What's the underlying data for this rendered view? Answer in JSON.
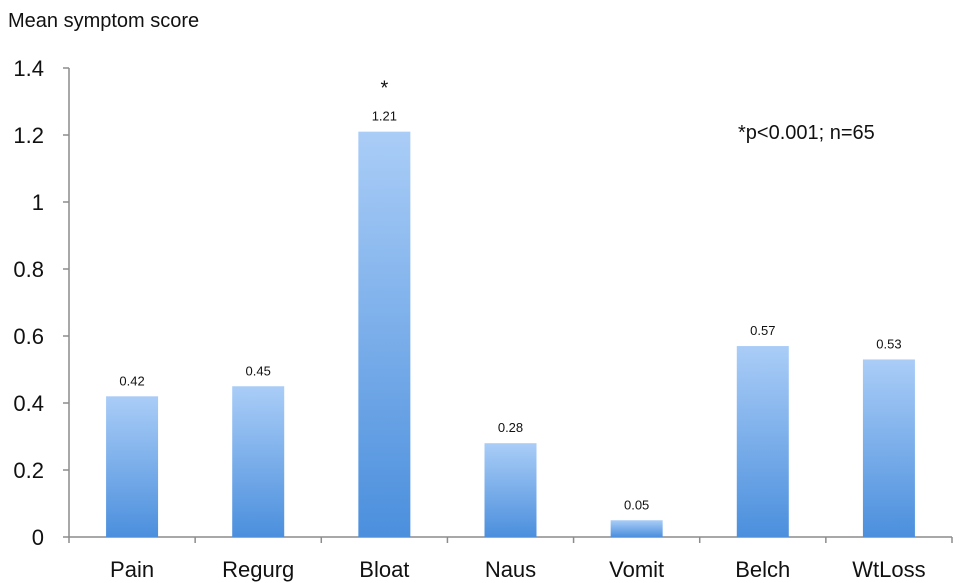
{
  "chart_data": {
    "type": "bar",
    "ylabel": "Mean symptom score",
    "xlabel": "",
    "categories": [
      "Pain",
      "Regurg",
      "Bloat",
      "Naus",
      "Vomit",
      "Belch",
      "WtLoss"
    ],
    "values": [
      0.42,
      0.45,
      1.21,
      0.28,
      0.05,
      0.57,
      0.53
    ],
    "data_labels": [
      "0.42",
      "0.45",
      "1.21",
      "0.28",
      "0.05",
      "0.57",
      "0.53"
    ],
    "ylim": [
      0,
      1.4
    ],
    "yticks": [
      "0",
      "0.2",
      "0.4",
      "0.6",
      "0.8",
      "1",
      "1.2",
      "1.4"
    ],
    "significance_marker": {
      "category": "Bloat",
      "symbol": "*"
    },
    "annotation": "*p<0.001; n=65",
    "grid": false,
    "legend": "none",
    "bar_color_top": "#aacdf7",
    "bar_color_bottom": "#4b8fdd"
  }
}
